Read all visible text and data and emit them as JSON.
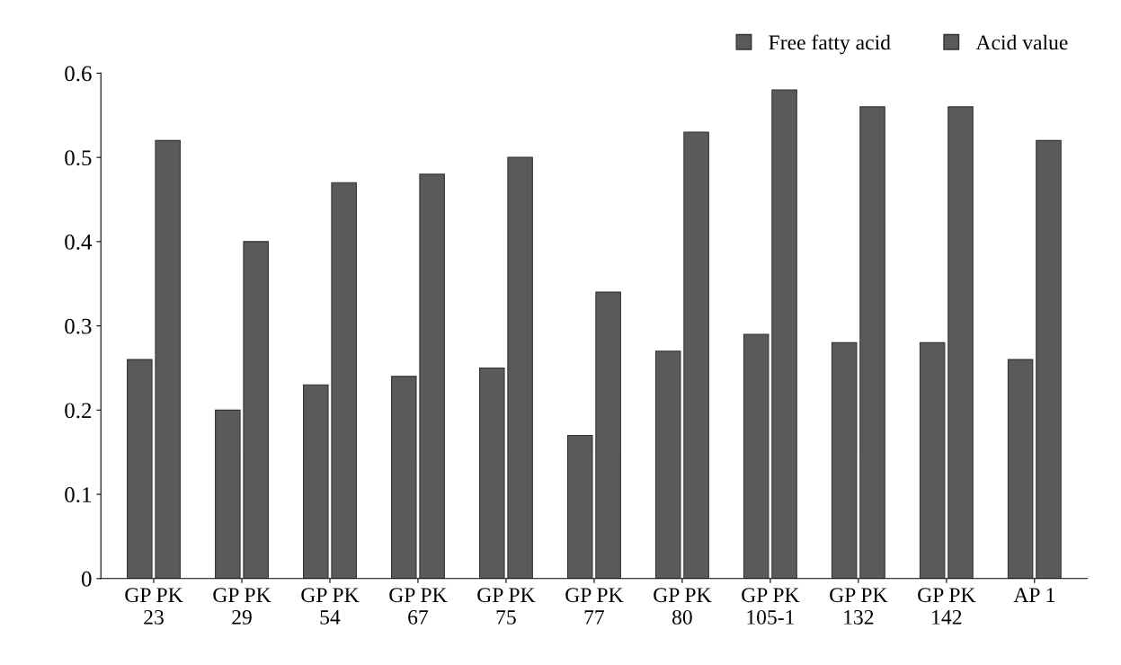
{
  "chart_data": {
    "type": "bar",
    "categories": [
      "GP PK\n23",
      "GP PK\n29",
      "GP PK\n54",
      "GP PK\n67",
      "GP PK\n75",
      "GP PK\n77",
      "GP PK\n80",
      "GP PK\n105-1",
      "GP PK\n132",
      "GP PK\n142",
      "AP 1"
    ],
    "series": [
      {
        "name": "Free fatty acid",
        "color": "#5a5a5a",
        "values": [
          0.26,
          0.2,
          0.23,
          0.24,
          0.25,
          0.17,
          0.27,
          0.29,
          0.28,
          0.28,
          0.26
        ]
      },
      {
        "name": "Acid value",
        "color": "#5a5a5a",
        "values": [
          0.52,
          0.4,
          0.47,
          0.48,
          0.5,
          0.34,
          0.53,
          0.58,
          0.56,
          0.56,
          0.52
        ]
      }
    ],
    "ylim": [
      0,
      0.6
    ],
    "yticks": [
      0,
      0.1,
      0.2,
      0.3,
      0.4,
      0.5,
      0.6
    ],
    "grid": false,
    "legend": "top right"
  }
}
